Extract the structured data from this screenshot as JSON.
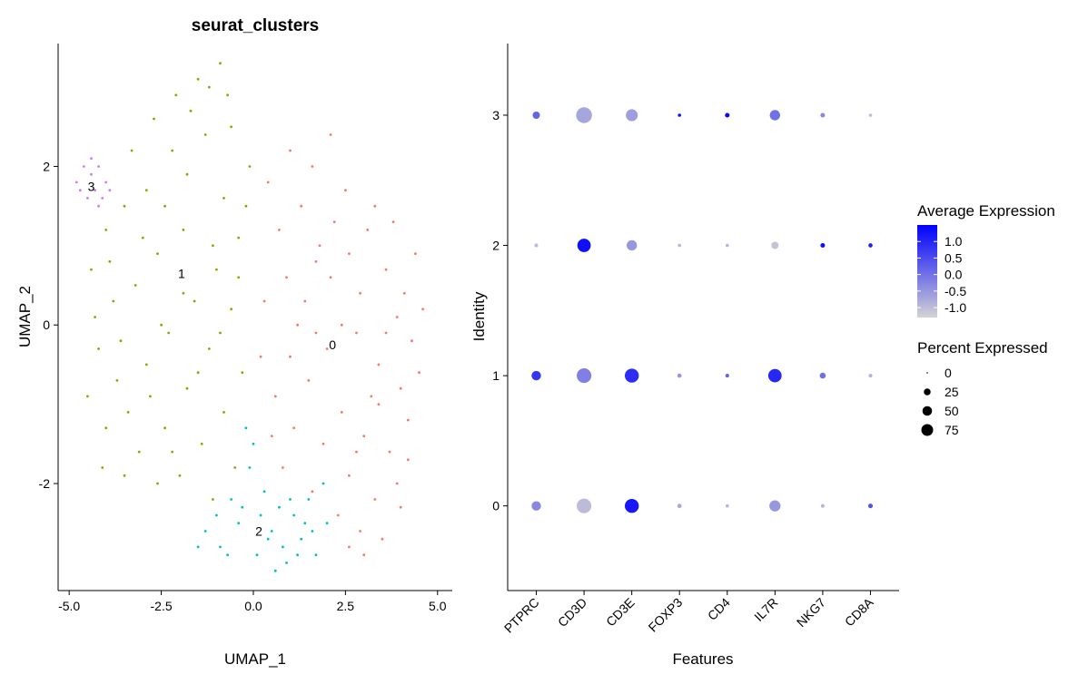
{
  "colors": {
    "cluster_0": "#F8766D",
    "cluster_1": "#7CAE00",
    "cluster_2": "#00BFC4",
    "cluster_3": "#C77CFF",
    "expr_low": "#D3D3D3",
    "expr_high": "#0000FF"
  },
  "chart_data": [
    {
      "type": "scatter",
      "title": "seurat_clusters",
      "xlabel": "UMAP_1",
      "ylabel": "UMAP_2",
      "xlim": [
        -5.3,
        5.4
      ],
      "ylim": [
        -3.35,
        3.55
      ],
      "xticks": [
        -5.0,
        -2.5,
        0.0,
        2.5,
        5.0
      ],
      "xtick_labels": [
        "-5.0",
        "-2.5",
        "0.0",
        "2.5",
        "5.0"
      ],
      "yticks": [
        -2,
        0,
        2
      ],
      "ytick_labels": [
        "-2",
        "0",
        "2"
      ],
      "grid": false,
      "legend": "none",
      "series": [
        {
          "cluster": "0",
          "label": "0",
          "label_pos": [
            2.15,
            -0.25
          ],
          "cells": [
            [
              2.2,
              1.3
            ],
            [
              2.6,
              0.9
            ],
            [
              3.1,
              1.2
            ],
            [
              3.6,
              0.7
            ],
            [
              4.1,
              0.4
            ],
            [
              1.7,
              0.8
            ],
            [
              0.9,
              0.6
            ],
            [
              0.3,
              0.3
            ],
            [
              1.2,
              0.0
            ],
            [
              2.0,
              -0.3
            ],
            [
              2.8,
              -0.1
            ],
            [
              3.4,
              -0.5
            ],
            [
              4.0,
              -0.8
            ],
            [
              4.3,
              -0.2
            ],
            [
              1.5,
              -0.7
            ],
            [
              0.6,
              -0.9
            ],
            [
              2.4,
              -1.1
            ],
            [
              3.0,
              -1.4
            ],
            [
              3.7,
              -1.6
            ],
            [
              4.2,
              -1.2
            ],
            [
              1.9,
              -1.5
            ],
            [
              1.1,
              -1.3
            ],
            [
              2.6,
              -1.9
            ],
            [
              3.3,
              -2.2
            ],
            [
              3.9,
              -2.0
            ],
            [
              2.9,
              -2.6
            ],
            [
              3.5,
              -2.7
            ],
            [
              2.3,
              -2.4
            ],
            [
              1.6,
              -2.1
            ],
            [
              0.4,
              1.8
            ],
            [
              1.0,
              2.2
            ],
            [
              1.6,
              2.0
            ],
            [
              2.1,
              2.4
            ],
            [
              2.5,
              1.7
            ],
            [
              3.3,
              1.5
            ],
            [
              3.8,
              1.3
            ],
            [
              4.4,
              0.9
            ],
            [
              4.6,
              0.2
            ],
            [
              0.2,
              -0.4
            ],
            [
              0.8,
              -1.8
            ],
            [
              1.3,
              1.5
            ],
            [
              2.9,
              0.4
            ],
            [
              3.6,
              -0.1
            ],
            [
              4.5,
              -0.6
            ],
            [
              3.2,
              -0.9
            ],
            [
              2.1,
              0.6
            ],
            [
              1.4,
              0.3
            ],
            [
              0.7,
              1.2
            ],
            [
              4.0,
              -2.3
            ],
            [
              3.0,
              -2.9
            ],
            [
              2.6,
              -2.8
            ],
            [
              1.8,
              1.0
            ],
            [
              3.9,
              0.1
            ],
            [
              2.4,
              0.0
            ],
            [
              1.0,
              -0.4
            ],
            [
              4.2,
              -1.7
            ],
            [
              3.4,
              -1.0
            ],
            [
              2.8,
              -1.6
            ],
            [
              1.7,
              -0.1
            ],
            [
              0.5,
              -1.4
            ]
          ]
        },
        {
          "cluster": "1",
          "label": "1",
          "label_pos": [
            -1.95,
            0.65
          ],
          "cells": [
            [
              -1.5,
              3.1
            ],
            [
              -0.9,
              3.3
            ],
            [
              -2.1,
              2.9
            ],
            [
              -2.7,
              2.6
            ],
            [
              -1.3,
              2.4
            ],
            [
              -0.6,
              2.5
            ],
            [
              -0.1,
              2.0
            ],
            [
              -1.8,
              1.9
            ],
            [
              -2.9,
              1.7
            ],
            [
              -3.5,
              1.5
            ],
            [
              -4.0,
              1.2
            ],
            [
              -4.4,
              0.7
            ],
            [
              -3.8,
              0.3
            ],
            [
              -4.2,
              -0.3
            ],
            [
              -4.5,
              -0.9
            ],
            [
              -4.0,
              -1.3
            ],
            [
              -3.4,
              -1.1
            ],
            [
              -2.9,
              -0.5
            ],
            [
              -2.3,
              -0.1
            ],
            [
              -1.6,
              0.3
            ],
            [
              -1.0,
              0.7
            ],
            [
              -0.4,
              1.1
            ],
            [
              -0.8,
              1.6
            ],
            [
              -1.9,
              1.2
            ],
            [
              -2.6,
              0.9
            ],
            [
              -3.2,
              0.5
            ],
            [
              -3.7,
              -0.7
            ],
            [
              -3.1,
              -1.6
            ],
            [
              -2.4,
              -1.3
            ],
            [
              -1.8,
              -0.8
            ],
            [
              -1.2,
              -0.3
            ],
            [
              -0.6,
              0.2
            ],
            [
              -0.3,
              -0.6
            ],
            [
              -0.8,
              -1.1
            ],
            [
              -1.4,
              -1.5
            ],
            [
              -2.0,
              -1.9
            ],
            [
              -2.6,
              -2.0
            ],
            [
              -1.1,
              -2.2
            ],
            [
              -0.5,
              -1.8
            ],
            [
              -3.3,
              2.2
            ],
            [
              -2.2,
              2.2
            ],
            [
              -1.1,
              1.0
            ],
            [
              -0.2,
              1.5
            ],
            [
              -2.5,
              0.0
            ],
            [
              -3.6,
              -0.2
            ],
            [
              -1.5,
              -0.6
            ],
            [
              -2.8,
              -0.9
            ],
            [
              -4.3,
              0.1
            ],
            [
              -3.0,
              1.1
            ],
            [
              -1.7,
              2.7
            ],
            [
              -0.7,
              2.9
            ],
            [
              -1.2,
              3.0
            ],
            [
              -2.4,
              1.5
            ],
            [
              -3.9,
              0.8
            ],
            [
              -4.1,
              -1.8
            ],
            [
              -3.5,
              -1.9
            ],
            [
              -2.2,
              -1.6
            ],
            [
              -0.9,
              -0.1
            ],
            [
              -0.4,
              0.6
            ],
            [
              -1.9,
              0.4
            ]
          ]
        },
        {
          "cluster": "2",
          "label": "2",
          "label_pos": [
            0.15,
            -2.6
          ],
          "cells": [
            [
              -1.3,
              -2.6
            ],
            [
              -0.9,
              -2.8
            ],
            [
              -0.4,
              -2.5
            ],
            [
              0.1,
              -2.9
            ],
            [
              0.5,
              -2.6
            ],
            [
              0.9,
              -3.0
            ],
            [
              1.3,
              -2.7
            ],
            [
              1.7,
              -2.9
            ],
            [
              2.0,
              -2.5
            ],
            [
              -0.6,
              -2.2
            ],
            [
              -0.1,
              -1.8
            ],
            [
              0.3,
              -2.1
            ],
            [
              0.7,
              -2.3
            ],
            [
              1.1,
              -2.4
            ],
            [
              1.5,
              -2.2
            ],
            [
              1.9,
              -2.0
            ],
            [
              -1.0,
              -2.4
            ],
            [
              -1.5,
              -2.8
            ],
            [
              -0.2,
              -1.3
            ],
            [
              0.0,
              -1.5
            ],
            [
              0.4,
              -2.7
            ],
            [
              0.8,
              -2.8
            ],
            [
              1.2,
              -2.9
            ],
            [
              1.6,
              -2.6
            ],
            [
              -0.7,
              -2.9
            ],
            [
              -0.3,
              -2.3
            ],
            [
              0.2,
              -2.4
            ],
            [
              0.6,
              -3.1
            ],
            [
              1.0,
              -2.2
            ],
            [
              1.4,
              -2.5
            ]
          ]
        },
        {
          "cluster": "3",
          "label": "3",
          "label_pos": [
            -4.4,
            1.75
          ],
          "cells": [
            [
              -4.8,
              1.8
            ],
            [
              -4.6,
              2.0
            ],
            [
              -4.4,
              1.9
            ],
            [
              -4.2,
              2.0
            ],
            [
              -4.0,
              1.8
            ],
            [
              -4.3,
              1.7
            ],
            [
              -4.5,
              1.6
            ],
            [
              -4.1,
              1.6
            ],
            [
              -3.9,
              1.7
            ],
            [
              -4.7,
              1.7
            ],
            [
              -4.4,
              2.1
            ],
            [
              -4.2,
              1.5
            ]
          ]
        }
      ]
    },
    {
      "type": "dot",
      "xlabel": "Features",
      "ylabel": "Identity",
      "features": [
        "PTPRC",
        "CD3D",
        "CD3E",
        "FOXP3",
        "CD4",
        "IL7R",
        "NKG7",
        "CD8A"
      ],
      "identities": [
        "0",
        "1",
        "2",
        "3"
      ],
      "ylim": [
        -0.65,
        3.55
      ],
      "grid": false,
      "legend": "right",
      "avg_expression": [
        [
          -0.3,
          -1.0,
          1.2,
          -0.7,
          -0.9,
          -0.5,
          -0.9,
          0.4
        ],
        [
          0.8,
          -0.2,
          0.9,
          -0.5,
          0.2,
          1.0,
          0.0,
          -0.9
        ],
        [
          -1.0,
          1.3,
          -0.5,
          -0.9,
          -0.9,
          -1.1,
          1.3,
          1.1
        ],
        [
          0.2,
          -0.7,
          -0.6,
          1.3,
          1.4,
          0.0,
          -0.3,
          -1.0
        ]
      ],
      "pct_expressed": [
        [
          25,
          60,
          55,
          5,
          3,
          35,
          4,
          6
        ],
        [
          25,
          60,
          55,
          5,
          4,
          50,
          10,
          4
        ],
        [
          4,
          50,
          30,
          3,
          3,
          15,
          6,
          5
        ],
        [
          15,
          70,
          40,
          3,
          6,
          30,
          6,
          3
        ]
      ],
      "legend_expression": {
        "title": "Average Expression",
        "range": [
          -1.3,
          1.5
        ],
        "ticks": [
          1.0,
          0.5,
          0.0,
          -0.5,
          -1.0
        ],
        "tick_labels": [
          "1.0",
          "0.5",
          "0.0",
          "-0.5",
          "-1.0"
        ]
      },
      "legend_percent": {
        "title": "Percent Expressed",
        "values": [
          0,
          25,
          50,
          75
        ],
        "labels": [
          "0",
          "25",
          "50",
          "75"
        ]
      }
    }
  ]
}
